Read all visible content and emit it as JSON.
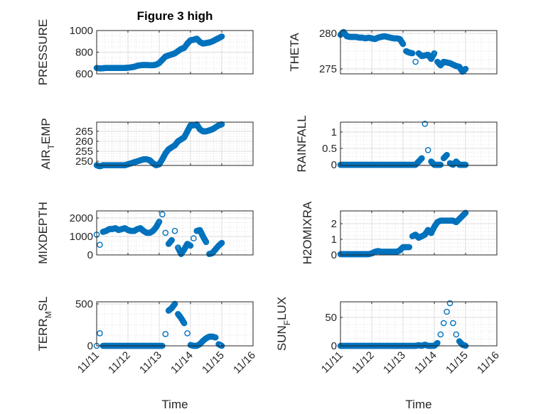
{
  "chart_data": {
    "type": "scatter",
    "title": "Figure 3 high",
    "xlabel": "Time",
    "x_tick_labels": [
      "11/11",
      "11/12",
      "11/13",
      "11/14",
      "11/15",
      "11/16"
    ],
    "x_unit": "days since 11/11",
    "xlim": [
      0,
      5
    ],
    "grid": true,
    "marker": "open-circle",
    "color": "#0072BD",
    "x": [
      0,
      0.1,
      0.2,
      0.3,
      0.4,
      0.5,
      0.6,
      0.7,
      0.8,
      0.9,
      1.0,
      1.1,
      1.2,
      1.3,
      1.4,
      1.5,
      1.6,
      1.7,
      1.8,
      1.9,
      2.0,
      2.1,
      2.2,
      2.3,
      2.4,
      2.5,
      2.6,
      2.7,
      2.8,
      2.9,
      3.0,
      3.1,
      3.2,
      3.3,
      3.4,
      3.5,
      3.6,
      3.7,
      3.8,
      3.9,
      4.0
    ],
    "subplots": [
      {
        "ylabel": {
          "main": "PRESSURE",
          "sub": "",
          "rest": ""
        },
        "ylim": [
          600,
          1000
        ],
        "yticks": [
          600,
          800,
          1000
        ],
        "ytick_labels": [
          "600",
          "800",
          "1000"
        ],
        "values": [
          655,
          650,
          652,
          655,
          655,
          655,
          655,
          655,
          655,
          655,
          657,
          660,
          665,
          675,
          680,
          682,
          682,
          680,
          680,
          685,
          700,
          730,
          760,
          770,
          780,
          790,
          810,
          830,
          840,
          880,
          910,
          915,
          925,
          895,
          880,
          885,
          890,
          900,
          915,
          930,
          945
        ]
      },
      {
        "ylabel": {
          "main": "THETA",
          "sub": "",
          "rest": ""
        },
        "ylim": [
          274.3,
          280.4
        ],
        "yticks": [
          275,
          280
        ],
        "ytick_labels": [
          "275",
          "280"
        ],
        "values": [
          279.8,
          280.2,
          279.6,
          279.5,
          279.5,
          279.5,
          279.4,
          279.4,
          279.3,
          279.4,
          279.3,
          279.2,
          279.4,
          279.5,
          279.6,
          279.5,
          279.4,
          279.3,
          279.3,
          279.2,
          278.5,
          277.5,
          277.3,
          277.2,
          276.0,
          277.2,
          276.8,
          276.9,
          277.0,
          276.4,
          277.2,
          276.0,
          275.5,
          276.0,
          275.9,
          275.8,
          275.6,
          275.4,
          275.3,
          274.6,
          275.0
        ]
      },
      {
        "ylabel": {
          "main": "AIR",
          "sub": "T",
          "rest": "EMP"
        },
        "ylim": [
          247.9,
          269.6
        ],
        "yticks": [
          250,
          255,
          260,
          265
        ],
        "ytick_labels": [
          "250",
          "255",
          "260",
          "265"
        ],
        "values": [
          248,
          247.5,
          248,
          248,
          248,
          248,
          248,
          248,
          248,
          248,
          248.5,
          249,
          249.5,
          250,
          250.5,
          251,
          251,
          250.5,
          249,
          248,
          248.5,
          251,
          254,
          256,
          257,
          258,
          260,
          261,
          262,
          265,
          268,
          268,
          268.5,
          266,
          265,
          265,
          265.5,
          266,
          267,
          268,
          268.5
        ]
      },
      {
        "ylabel": {
          "main": "RAINFALL",
          "sub": "",
          "rest": ""
        },
        "ylim": [
          -0.02,
          1.3
        ],
        "yticks": [
          0,
          0.5,
          1
        ],
        "ytick_labels": [
          "0",
          "0.5",
          "1"
        ],
        "values": [
          0,
          0,
          0,
          0,
          0,
          0,
          0,
          0,
          0,
          0,
          0,
          0,
          0,
          0,
          0,
          0,
          0,
          0,
          0,
          0,
          0,
          0,
          0,
          0,
          0,
          0.1,
          0.2,
          1.25,
          0.45,
          0.1,
          0,
          0,
          0,
          0.2,
          0.3,
          0.05,
          0,
          0.1,
          0,
          0,
          0
        ]
      },
      {
        "ylabel": {
          "main": "MIXDEPTH",
          "sub": "",
          "rest": ""
        },
        "ylim": [
          0,
          2385
        ],
        "yticks": [
          0,
          1000,
          2000
        ],
        "ytick_labels": [
          "0",
          "1000",
          "2000"
        ],
        "values": [
          1100,
          550,
          1250,
          1300,
          1400,
          1400,
          1450,
          1350,
          1400,
          1450,
          1350,
          1300,
          1300,
          1400,
          1450,
          1300,
          1200,
          1200,
          1300,
          1500,
          1800,
          2200,
          1200,
          600,
          800,
          1300,
          400,
          50,
          300,
          600,
          500,
          900,
          1300,
          1350,
          1000,
          700,
          50,
          100,
          300,
          500,
          650
        ]
      },
      {
        "ylabel": {
          "main": "H2OMIXRA",
          "sub": "",
          "rest": ""
        },
        "ylim": [
          0,
          2.82
        ],
        "yticks": [
          0,
          1,
          2
        ],
        "ytick_labels": [
          "0",
          "1",
          "2"
        ],
        "values": [
          0.05,
          0.05,
          0.05,
          0.05,
          0.05,
          0.05,
          0.05,
          0.05,
          0.05,
          0.05,
          0.1,
          0.2,
          0.25,
          0.2,
          0.2,
          0.2,
          0.2,
          0.2,
          0.2,
          0.3,
          0.5,
          0.5,
          0.5,
          1.2,
          1.3,
          1.1,
          1.2,
          1.3,
          1.6,
          1.4,
          1.8,
          2.1,
          2.2,
          2.2,
          2.2,
          2.2,
          2.2,
          2.1,
          2.3,
          2.5,
          2.7
        ]
      },
      {
        "ylabel": {
          "main": "TERR",
          "sub": "M",
          "rest": "SL"
        },
        "ylim": [
          0,
          525
        ],
        "yticks": [
          0,
          500
        ],
        "ytick_labels": [
          "0",
          "500"
        ],
        "values": [
          0,
          150,
          0,
          0,
          0,
          0,
          0,
          0,
          0,
          0,
          0,
          0,
          0,
          0,
          0,
          0,
          0,
          0,
          0,
          0,
          0,
          0,
          140,
          420,
          450,
          500,
          380,
          330,
          270,
          150,
          10,
          0,
          0,
          20,
          60,
          90,
          110,
          110,
          100,
          20,
          0
        ]
      },
      {
        "ylabel": {
          "main": "SUN",
          "sub": "F",
          "rest": "LUX"
        },
        "ylim": [
          0,
          77.5
        ],
        "yticks": [
          0,
          50
        ],
        "ytick_labels": [
          "0",
          "50"
        ],
        "values": [
          0,
          0,
          0,
          0,
          0,
          0,
          0,
          0,
          0,
          0,
          0,
          0,
          0,
          0,
          0,
          0,
          0,
          0,
          0,
          0,
          0,
          0,
          0,
          0,
          0,
          1,
          0,
          2,
          0,
          0,
          0,
          5,
          20,
          40,
          60,
          75,
          40,
          20,
          8,
          2,
          0
        ]
      }
    ]
  }
}
